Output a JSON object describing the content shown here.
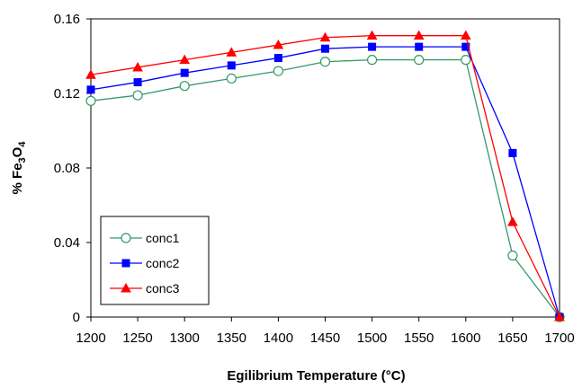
{
  "chart_data": {
    "type": "line",
    "title": "",
    "xlabel": "Egilibrium Temperature (°C)",
    "ylabel": "% Fe3O4",
    "ylabel_parts": [
      "% Fe",
      "3",
      "O",
      "4"
    ],
    "x": [
      1200,
      1250,
      1300,
      1350,
      1400,
      1450,
      1500,
      1550,
      1600,
      1650,
      1700
    ],
    "x_tick_labels": [
      "1200",
      "1250",
      "1300",
      "1350",
      "1400",
      "1450",
      "1500",
      "1550",
      "1600",
      "1650",
      "1700"
    ],
    "y_ticks": [
      0,
      0.04,
      0.08,
      0.12,
      0.16
    ],
    "y_tick_labels": [
      "0",
      "0.04",
      "0.08",
      "0.12",
      "0.16"
    ],
    "xlim": [
      1200,
      1700
    ],
    "ylim": [
      0,
      0.16
    ],
    "grid": false,
    "legend_position": "bottom-left",
    "series": [
      {
        "name": "conc1",
        "color": "#339966",
        "marker": "open-circle",
        "values": [
          0.116,
          0.119,
          0.124,
          0.128,
          0.132,
          0.137,
          0.138,
          0.138,
          0.138,
          0.033,
          0.0
        ]
      },
      {
        "name": "conc2",
        "color": "#0000ff",
        "marker": "filled-square",
        "values": [
          0.122,
          0.126,
          0.131,
          0.135,
          0.139,
          0.144,
          0.145,
          0.145,
          0.145,
          0.088,
          0.0
        ]
      },
      {
        "name": "conc3",
        "color": "#ff0000",
        "marker": "filled-triangle",
        "values": [
          0.13,
          0.134,
          0.138,
          0.142,
          0.146,
          0.15,
          0.151,
          0.151,
          0.151,
          0.051,
          0.0
        ]
      }
    ]
  }
}
